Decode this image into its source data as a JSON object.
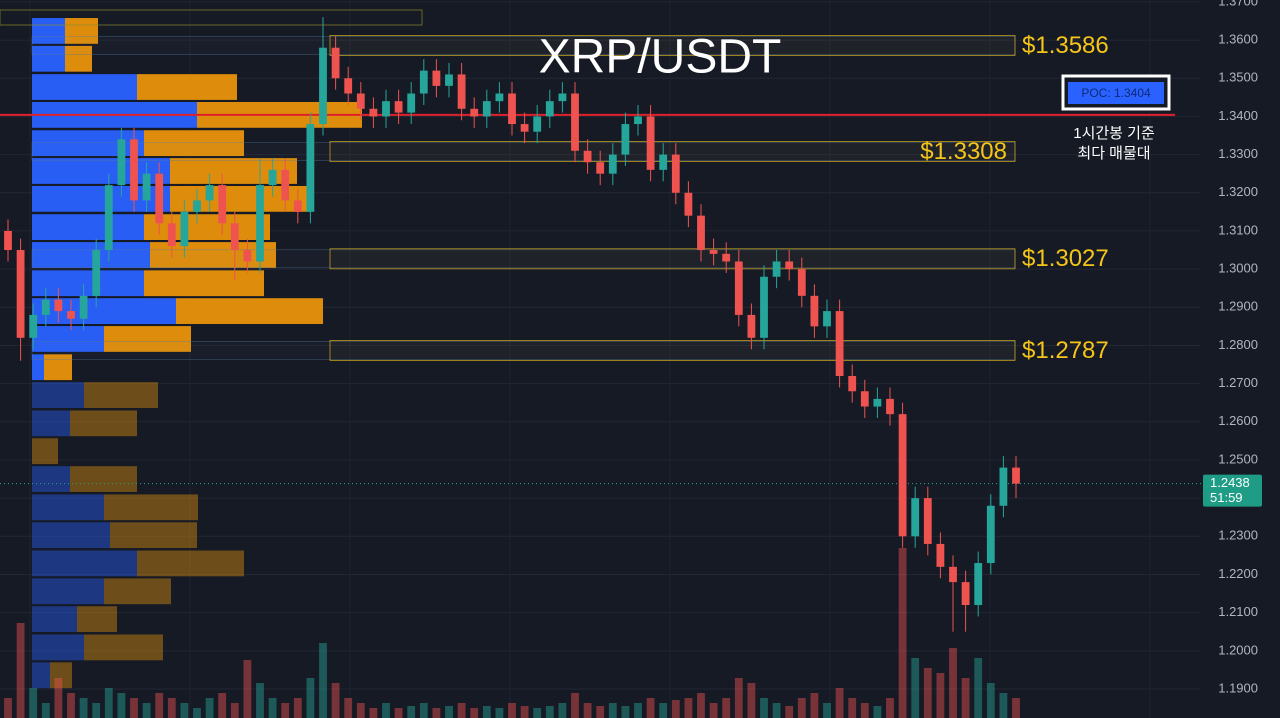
{
  "chart_data": {
    "type": "candlestick",
    "title": "XRP/USDT",
    "ylim": [
      1.1824,
      1.3705
    ],
    "yticks": [
      {
        "value": 1.37,
        "label": "1.3700"
      },
      {
        "value": 1.36,
        "label": "1.3600"
      },
      {
        "value": 1.35,
        "label": "1.3500"
      },
      {
        "value": 1.34,
        "label": "1.3400"
      },
      {
        "value": 1.33,
        "label": "1.3300"
      },
      {
        "value": 1.32,
        "label": "1.3200"
      },
      {
        "value": 1.31,
        "label": "1.3100"
      },
      {
        "value": 1.3,
        "label": "1.3000"
      },
      {
        "value": 1.29,
        "label": "1.2900"
      },
      {
        "value": 1.28,
        "label": "1.2800"
      },
      {
        "value": 1.27,
        "label": "1.2700"
      },
      {
        "value": 1.26,
        "label": "1.2600"
      },
      {
        "value": 1.25,
        "label": "1.2500"
      },
      {
        "value": 1.24,
        "label": "1.2400"
      },
      {
        "value": 1.23,
        "label": "1.2300"
      },
      {
        "value": 1.22,
        "label": "1.2200"
      },
      {
        "value": 1.21,
        "label": "1.2100"
      },
      {
        "value": 1.2,
        "label": "1.2000"
      },
      {
        "value": 1.19,
        "label": "1.1900"
      }
    ],
    "grid": true,
    "up_color": "#26a69a",
    "down_color": "#ef5350",
    "open": [
      1.31,
      1.305,
      1.282,
      1.288,
      1.292,
      1.289,
      1.287,
      1.293,
      1.305,
      1.322,
      1.334,
      1.318,
      1.325,
      1.312,
      1.306,
      1.315,
      1.318,
      1.322,
      1.312,
      1.305,
      1.302,
      1.322,
      1.326,
      1.318,
      1.315,
      1.338,
      1.358,
      1.35,
      1.346,
      1.342,
      1.34,
      1.344,
      1.341,
      1.346,
      1.352,
      1.348,
      1.351,
      1.342,
      1.34,
      1.344,
      1.346,
      1.338,
      1.336,
      1.34,
      1.344,
      1.346,
      1.331,
      1.328,
      1.325,
      1.33,
      1.338,
      1.34,
      1.326,
      1.33,
      1.32,
      1.314,
      1.305,
      1.304,
      1.302,
      1.288,
      1.282,
      1.298,
      1.302,
      1.3,
      1.293,
      1.285,
      1.289,
      1.272,
      1.268,
      1.264,
      1.266,
      1.262,
      1.23,
      1.24,
      1.228,
      1.222,
      1.218,
      1.212,
      1.223,
      1.238,
      1.248
    ],
    "high": [
      1.313,
      1.308,
      1.291,
      1.295,
      1.295,
      1.292,
      1.296,
      1.308,
      1.325,
      1.337,
      1.337,
      1.328,
      1.328,
      1.315,
      1.318,
      1.321,
      1.325,
      1.325,
      1.315,
      1.308,
      1.329,
      1.329,
      1.329,
      1.321,
      1.341,
      1.366,
      1.361,
      1.353,
      1.349,
      1.345,
      1.347,
      1.347,
      1.349,
      1.355,
      1.355,
      1.354,
      1.354,
      1.345,
      1.347,
      1.349,
      1.349,
      1.341,
      1.343,
      1.347,
      1.349,
      1.349,
      1.334,
      1.331,
      1.333,
      1.341,
      1.343,
      1.343,
      1.333,
      1.333,
      1.323,
      1.317,
      1.308,
      1.307,
      1.305,
      1.291,
      1.301,
      1.305,
      1.305,
      1.303,
      1.296,
      1.292,
      1.292,
      1.275,
      1.271,
      1.269,
      1.269,
      1.265,
      1.243,
      1.243,
      1.231,
      1.225,
      1.221,
      1.226,
      1.241,
      1.251,
      1.251
    ],
    "low": [
      1.302,
      1.276,
      1.279,
      1.285,
      1.286,
      1.284,
      1.284,
      1.29,
      1.302,
      1.319,
      1.315,
      1.315,
      1.309,
      1.303,
      1.303,
      1.312,
      1.315,
      1.309,
      1.297,
      1.299,
      1.299,
      1.319,
      1.315,
      1.312,
      1.312,
      1.335,
      1.347,
      1.343,
      1.339,
      1.337,
      1.337,
      1.338,
      1.338,
      1.343,
      1.345,
      1.345,
      1.339,
      1.337,
      1.337,
      1.341,
      1.335,
      1.333,
      1.333,
      1.337,
      1.341,
      1.328,
      1.325,
      1.322,
      1.322,
      1.327,
      1.335,
      1.323,
      1.323,
      1.317,
      1.311,
      1.302,
      1.301,
      1.299,
      1.285,
      1.279,
      1.279,
      1.295,
      1.297,
      1.29,
      1.282,
      1.282,
      1.269,
      1.265,
      1.261,
      1.261,
      1.259,
      1.227,
      1.227,
      1.225,
      1.219,
      1.205,
      1.205,
      1.209,
      1.22,
      1.235,
      1.24
    ],
    "close": [
      1.305,
      1.282,
      1.288,
      1.292,
      1.289,
      1.287,
      1.293,
      1.305,
      1.322,
      1.334,
      1.318,
      1.325,
      1.312,
      1.306,
      1.315,
      1.318,
      1.322,
      1.312,
      1.305,
      1.302,
      1.322,
      1.326,
      1.318,
      1.315,
      1.338,
      1.358,
      1.35,
      1.346,
      1.342,
      1.34,
      1.344,
      1.341,
      1.346,
      1.352,
      1.348,
      1.351,
      1.342,
      1.34,
      1.344,
      1.346,
      1.338,
      1.336,
      1.34,
      1.344,
      1.346,
      1.331,
      1.328,
      1.325,
      1.33,
      1.338,
      1.34,
      1.326,
      1.33,
      1.32,
      1.314,
      1.305,
      1.304,
      1.302,
      1.288,
      1.282,
      1.298,
      1.302,
      1.3,
      1.293,
      1.285,
      1.289,
      1.272,
      1.268,
      1.264,
      1.266,
      1.262,
      1.23,
      1.24,
      1.228,
      1.222,
      1.218,
      1.212,
      1.223,
      1.238,
      1.248,
      1.2438
    ],
    "volume": [
      20,
      95,
      30,
      15,
      40,
      25,
      20,
      15,
      30,
      25,
      20,
      15,
      25,
      20,
      15,
      10,
      20,
      25,
      15,
      58,
      35,
      20,
      15,
      20,
      40,
      75,
      35,
      20,
      15,
      10,
      15,
      10,
      12,
      15,
      10,
      12,
      15,
      10,
      12,
      10,
      15,
      12,
      10,
      12,
      15,
      25,
      15,
      12,
      15,
      12,
      15,
      20,
      15,
      18,
      20,
      25,
      15,
      20,
      40,
      35,
      20,
      15,
      12,
      20,
      25,
      15,
      30,
      20,
      15,
      12,
      20,
      170,
      60,
      50,
      45,
      70,
      40,
      60,
      35,
      25,
      20
    ],
    "volume_lim": [
      0,
      180
    ],
    "volume_profile": {
      "price": [
        1.3624,
        1.3551,
        1.3477,
        1.3404,
        1.333,
        1.3257,
        1.3184,
        1.311,
        1.3037,
        1.2963,
        1.289,
        1.2817,
        1.2743,
        1.267,
        1.2596,
        1.2523,
        1.245,
        1.2376,
        1.2303,
        1.2229,
        1.2156,
        1.2083,
        1.2009,
        1.1936
      ],
      "buy": [
        33,
        33,
        105,
        165,
        112,
        138,
        138,
        112,
        118,
        112,
        144,
        72,
        12,
        52,
        38,
        0,
        38,
        72,
        78,
        105,
        72,
        45,
        52,
        18
      ],
      "sell": [
        33,
        27,
        100,
        165,
        100,
        127,
        140,
        126,
        126,
        120,
        147,
        87,
        28,
        74,
        67,
        26,
        67,
        94,
        87,
        107,
        67,
        40,
        79,
        22
      ],
      "buy_color": "#2962ff",
      "sell_color": "#e8940a",
      "value_area": [
        1.2707,
        1.3661
      ]
    },
    "levels": [
      {
        "value": 1.3586,
        "label": "$1.3586"
      },
      {
        "value": 1.3308,
        "label": "$1.3308"
      },
      {
        "value": 1.3027,
        "label": "$1.3027"
      },
      {
        "value": 1.2787,
        "label": "$1.2787"
      }
    ],
    "level_color": "#f5c518",
    "poc": {
      "value": 1.3404,
      "label": "POC: 1.3404"
    },
    "poc_color": "#e0202a",
    "poc_note": [
      "1시간봉 기준",
      "최다 매물대"
    ],
    "last_price": {
      "value": 1.2438,
      "label": "1.2438"
    },
    "countdown": "51:59"
  }
}
